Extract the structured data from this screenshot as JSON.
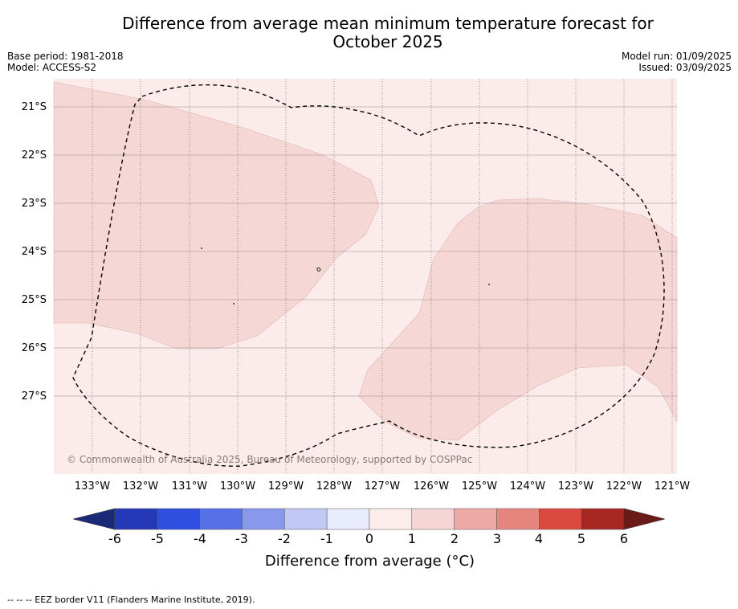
{
  "title_line1": "Difference from average mean minimum temperature forecast for",
  "title_line2": "October 2025",
  "base_period": "Base period: 1981-2018",
  "model": "Model: ACCESS-S2",
  "model_run": "Model run: 01/09/2025",
  "issued": "Issued: 03/09/2025",
  "copyright": "© Commonwealth of Australia 2025, Bureau of Meteorology, supported by COSPPac",
  "map": {
    "lat_labels": [
      "21°S",
      "22°S",
      "23°S",
      "24°S",
      "25°S",
      "26°S",
      "27°S"
    ],
    "lon_labels": [
      "133°W",
      "132°W",
      "131°W",
      "130°W",
      "129°W",
      "128°W",
      "127°W",
      "126°W",
      "125°W",
      "124°W",
      "123°W",
      "122°W",
      "121°W"
    ],
    "background_color": "#fbebea",
    "shaded_region_color": "#f5d7d5",
    "background_anomaly_range": "0 to 1",
    "shaded_anomaly_range": "1 to 2"
  },
  "colorbar": {
    "ticks": [
      "-6",
      "-5",
      "-4",
      "-3",
      "-2",
      "-1",
      "0",
      "1",
      "2",
      "3",
      "4",
      "5",
      "6"
    ],
    "colors": [
      "#1b2a78",
      "#2438b8",
      "#2e4fe0",
      "#5670e8",
      "#8898ec",
      "#c1c8f5",
      "#e8ebfb",
      "#fcecea",
      "#f6d6d4",
      "#edaaa6",
      "#e7857f",
      "#dc4a3f",
      "#a72722",
      "#6b1b17"
    ],
    "label": "Difference from average (°C)"
  },
  "footnote": "-- -- -- EEZ border V11 (Flanders Marine Institute, 2019)."
}
